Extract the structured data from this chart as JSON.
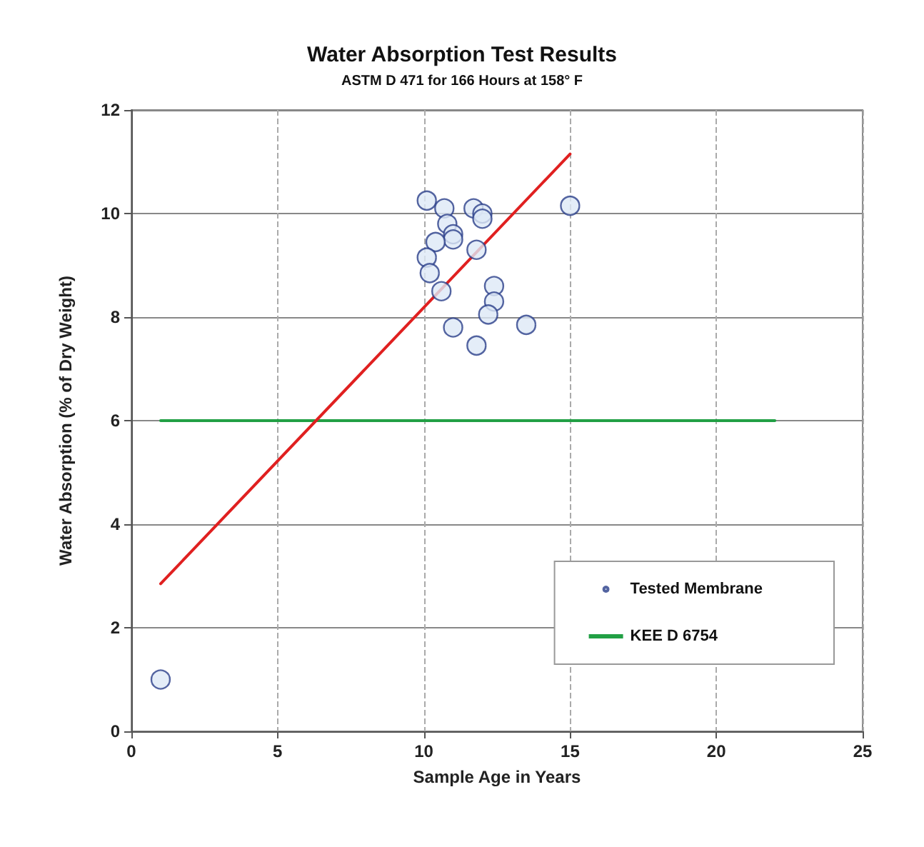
{
  "chart_data": {
    "type": "scatter",
    "title": "Water Absorption Test Results",
    "subtitle": "ASTM D 471 for 166 Hours at 158° F",
    "xlabel": "Sample Age in Years",
    "ylabel": "Water Absorption (% of Dry Weight)",
    "series": [
      {
        "name": "Tested Membrane",
        "color": "#dde8f6",
        "marker": "circle",
        "x": [
          10.1,
          10.7,
          11.7,
          12.0,
          12.0,
          10.8,
          11.0,
          11.0,
          10.4,
          11.8,
          10.1,
          10.2,
          10.6,
          12.4,
          12.4,
          12.2,
          11.0,
          13.5,
          11.8,
          15.0,
          1.0
        ],
        "values": [
          10.25,
          10.1,
          10.1,
          10.0,
          9.9,
          9.8,
          9.6,
          9.5,
          9.45,
          9.3,
          9.15,
          8.85,
          8.5,
          8.6,
          8.3,
          8.05,
          7.8,
          7.85,
          7.45,
          10.15,
          1.0
        ]
      },
      {
        "name": "KEE D 6754",
        "type": "line",
        "color": "#22a045",
        "marker": "none",
        "x": [
          1,
          22
        ],
        "values": [
          6,
          6
        ]
      },
      {
        "type": "line",
        "color": "#e02020",
        "marker": "none",
        "x": [
          1,
          15
        ],
        "values": [
          2.85,
          11.15
        ]
      }
    ],
    "xlim": [
      0,
      25
    ],
    "xticks": [
      0,
      5,
      10,
      15,
      20,
      25
    ],
    "ylim": [
      0,
      12
    ],
    "yticks": [
      0,
      2,
      4,
      6,
      8,
      10,
      12
    ],
    "grid": true,
    "legend": "bottom right"
  }
}
